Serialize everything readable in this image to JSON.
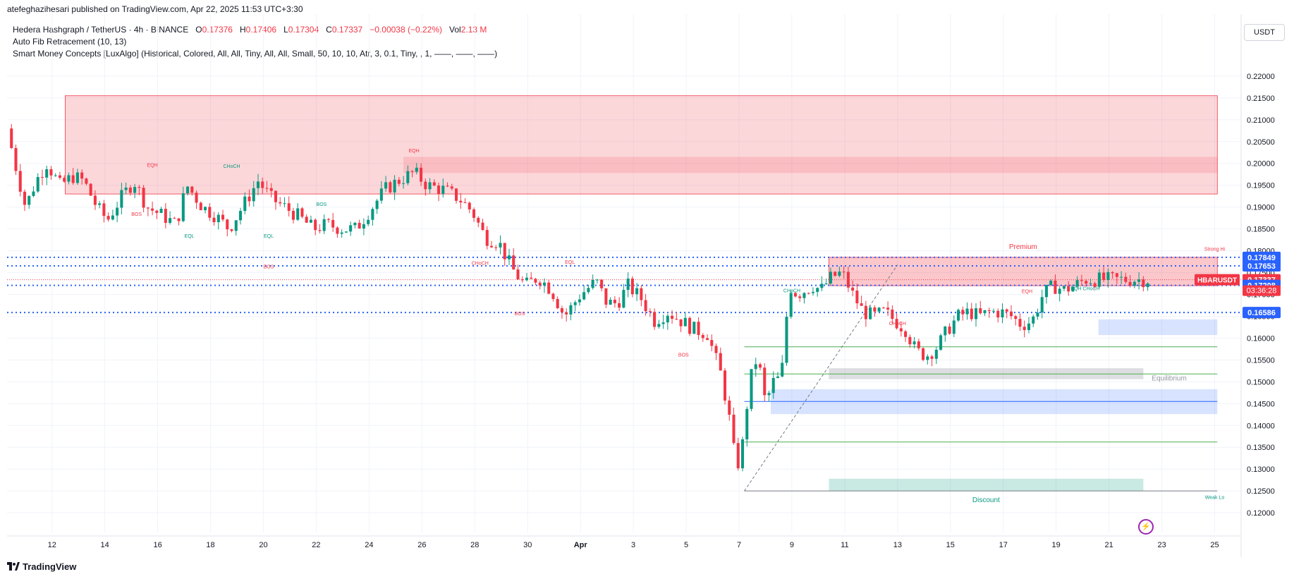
{
  "header": {
    "published": "atefeghazihesari published on TradingView.com, Apr 22, 2025 11:53 UTC+3:30"
  },
  "legend": {
    "symbol": "Hedera Hashgraph / TetherUS · 4h · BINANCE",
    "o_label": "O",
    "o_value": "0.17376",
    "h_label": "H",
    "h_value": "0.17406",
    "l_label": "L",
    "l_value": "0.17304",
    "c_label": "C",
    "c_value": "0.17337",
    "change": "−0.00038 (−0.22%)",
    "vol_label": "Vol",
    "vol_value": "2.13 M",
    "indicator1": "Auto Fib Retracement (10, 13)",
    "indicator2": "Smart Money Concepts [LuxAlgo] (Historical, Colored, All, All, Tiny, All, All, Small, 50, 10, 10, Atr, 3, 0.1, Tiny, , 1, ——, ——, ——)"
  },
  "currency": "USDT",
  "footer": {
    "brand": "TradingView"
  },
  "colors": {
    "up": "#089981",
    "down": "#f23645",
    "premium": "#f7c9cd",
    "discount": "#b2dfd8",
    "blue": "#2962ff"
  },
  "chart_data": {
    "type": "candlestick",
    "symbol": "HBARUSDT",
    "timeframe": "4h",
    "yrange": [
      0.1155,
      0.2245
    ],
    "y_ticks": [
      "0.22000",
      "0.21500",
      "0.21000",
      "0.20500",
      "0.20000",
      "0.19500",
      "0.19000",
      "0.18500",
      "0.18000",
      "0.17500",
      "0.17000",
      "0.16500",
      "0.16000",
      "0.15500",
      "0.15000",
      "0.14500",
      "0.14000",
      "0.13500",
      "0.13000",
      "0.12500",
      "0.12000"
    ],
    "x_ticks": [
      "12",
      "14",
      "16",
      "18",
      "20",
      "22",
      "24",
      "26",
      "28",
      "30",
      "Apr",
      "3",
      "5",
      "7",
      "9",
      "11",
      "13",
      "15",
      "17",
      "19",
      "21",
      "23",
      "25"
    ],
    "x_tick_days": [
      12,
      14,
      16,
      18,
      20,
      22,
      24,
      26,
      28,
      30,
      32,
      34,
      36,
      38,
      40,
      42,
      44,
      46,
      48,
      50,
      52,
      54,
      56
    ],
    "xrange_days": [
      10.3,
      57.0
    ],
    "price_path_days": [
      10.3,
      10.6,
      11.0,
      11.4,
      11.8,
      12.3,
      12.8,
      13.2,
      13.7,
      14.1,
      14.6,
      15.1,
      15.6,
      16.2,
      16.7,
      17.1,
      17.7,
      18.2,
      18.7,
      19.2,
      19.8,
      20.3,
      20.8,
      21.3,
      21.9,
      22.4,
      23.0,
      23.5,
      24.0,
      24.6,
      25.1,
      25.7,
      26.2,
      26.8,
      27.4,
      27.9,
      28.4,
      28.9,
      29.4,
      29.9,
      30.4,
      30.9,
      31.4,
      32.0,
      32.6,
      33.0,
      33.4,
      33.8,
      34.3,
      34.8,
      35.3,
      35.8,
      36.3,
      36.8,
      37.3,
      37.6,
      37.9,
      38.1,
      38.4,
      38.7,
      39.0,
      39.3,
      39.6,
      39.9,
      40.2,
      40.5,
      40.8,
      41.1,
      41.5,
      41.9,
      42.3,
      42.7,
      43.1,
      43.5,
      43.9,
      44.3,
      44.7,
      45.1,
      45.5,
      45.9,
      46.3,
      46.7,
      47.1,
      47.5,
      47.9,
      48.3,
      48.7,
      49.1,
      49.5,
      49.9,
      50.3,
      50.7,
      51.1,
      51.5,
      51.9,
      52.3,
      52.7,
      53.1,
      53.5
    ],
    "price_path": [
      0.208,
      0.2,
      0.19,
      0.196,
      0.2,
      0.195,
      0.197,
      0.196,
      0.19,
      0.187,
      0.192,
      0.196,
      0.19,
      0.188,
      0.186,
      0.195,
      0.19,
      0.188,
      0.185,
      0.19,
      0.196,
      0.192,
      0.19,
      0.188,
      0.185,
      0.186,
      0.185,
      0.185,
      0.189,
      0.194,
      0.196,
      0.198,
      0.195,
      0.194,
      0.192,
      0.189,
      0.183,
      0.182,
      0.176,
      0.172,
      0.174,
      0.171,
      0.165,
      0.17,
      0.173,
      0.168,
      0.168,
      0.172,
      0.169,
      0.164,
      0.166,
      0.164,
      0.162,
      0.161,
      0.152,
      0.143,
      0.13,
      0.134,
      0.15,
      0.156,
      0.145,
      0.15,
      0.151,
      0.172,
      0.17,
      0.171,
      0.172,
      0.171,
      0.174,
      0.175,
      0.17,
      0.166,
      0.165,
      0.166,
      0.164,
      0.162,
      0.157,
      0.156,
      0.158,
      0.162,
      0.165,
      0.166,
      0.165,
      0.166,
      0.166,
      0.165,
      0.163,
      0.164,
      0.17,
      0.172,
      0.171,
      0.172,
      0.1734,
      0.1734,
      0.1734,
      0.1734,
      0.1734,
      0.1734,
      0.1734
    ],
    "zones": [
      {
        "label": "",
        "from_day": 12.5,
        "to_day": 56.1,
        "top": 0.2155,
        "bottom": 0.193,
        "kind": "supply"
      },
      {
        "label": "",
        "from_day": 25.3,
        "to_day": 56.1,
        "top": 0.2015,
        "bottom": 0.1978,
        "kind": "supply_dark"
      },
      {
        "label": "Premium",
        "from_day": 41.4,
        "to_day": 56.1,
        "top": 0.1785,
        "bottom": 0.172,
        "kind": "premium"
      },
      {
        "label": "Equilibrium",
        "from_day": 41.4,
        "to_day": 53.3,
        "top": 0.1531,
        "bottom": 0.1506,
        "kind": "equilibrium"
      },
      {
        "label": "",
        "from_day": 39.2,
        "to_day": 56.1,
        "top": 0.1483,
        "bottom": 0.1426,
        "kind": "demand"
      },
      {
        "label": "",
        "from_day": 51.6,
        "to_day": 56.1,
        "top": 0.1643,
        "bottom": 0.1607,
        "kind": "demand"
      },
      {
        "label": "Discount",
        "from_day": 41.4,
        "to_day": 53.3,
        "top": 0.1278,
        "bottom": 0.125,
        "kind": "discount"
      }
    ],
    "dotted_levels": [
      0.17849,
      0.17653,
      0.17208,
      0.16586
    ],
    "fib_levels": [
      0.158,
      0.1518,
      0.1455,
      0.1362
    ],
    "labels": [
      {
        "text": "EQH",
        "day": 15.8,
        "price": 0.1992,
        "color": "#f23645"
      },
      {
        "text": "CHoCH",
        "day": 18.8,
        "price": 0.199,
        "color": "#089981"
      },
      {
        "text": "BOS",
        "day": 15.2,
        "price": 0.188,
        "color": "#f23645"
      },
      {
        "text": "BOS",
        "day": 22.2,
        "price": 0.1903,
        "color": "#089981"
      },
      {
        "text": "EQL",
        "day": 17.2,
        "price": 0.183,
        "color": "#089981"
      },
      {
        "text": "EQL",
        "day": 20.2,
        "price": 0.183,
        "color": "#089981"
      },
      {
        "text": "BOS",
        "day": 20.2,
        "price": 0.176,
        "color": "#f23645"
      },
      {
        "text": "EQH",
        "day": 25.7,
        "price": 0.2025,
        "color": "#f23645"
      },
      {
        "text": "CHoCH",
        "day": 28.2,
        "price": 0.1768,
        "color": "#f23645"
      },
      {
        "text": "EQL",
        "day": 31.6,
        "price": 0.177,
        "color": "#f23645"
      },
      {
        "text": "BOS",
        "day": 29.7,
        "price": 0.1652,
        "color": "#f23645"
      },
      {
        "text": "BOS",
        "day": 35.9,
        "price": 0.1558,
        "color": "#f23645"
      },
      {
        "text": "CHoCH",
        "day": 40.0,
        "price": 0.1705,
        "color": "#089981"
      },
      {
        "text": "CHoCH",
        "day": 44.0,
        "price": 0.163,
        "color": "#f23645"
      },
      {
        "text": "EQH",
        "day": 48.9,
        "price": 0.1703,
        "color": "#f23645"
      },
      {
        "text": "EQH CHoCH",
        "day": 51.1,
        "price": 0.171,
        "color": "#089981"
      },
      {
        "text": "Strong Hi",
        "day": 56.0,
        "price": 0.18,
        "color": "#f23645"
      },
      {
        "text": "Weak Lo",
        "day": 56.0,
        "price": 0.1232,
        "color": "#089981"
      }
    ],
    "price_labels": [
      {
        "text": "0.17849",
        "price": 0.17849,
        "bg": "#2962ff"
      },
      {
        "text": "0.17653",
        "price": 0.17653,
        "bg": "#2962ff"
      },
      {
        "text": "0.17337",
        "price": 0.17337,
        "bg": "#f23645"
      },
      {
        "text": "0.17208",
        "price": 0.17208,
        "bg": "#2962ff"
      },
      {
        "text": "0.16586",
        "price": 0.16586,
        "bg": "#2962ff"
      }
    ],
    "ticker_label": "HBARUSDT",
    "countdown": "03:36:28"
  }
}
